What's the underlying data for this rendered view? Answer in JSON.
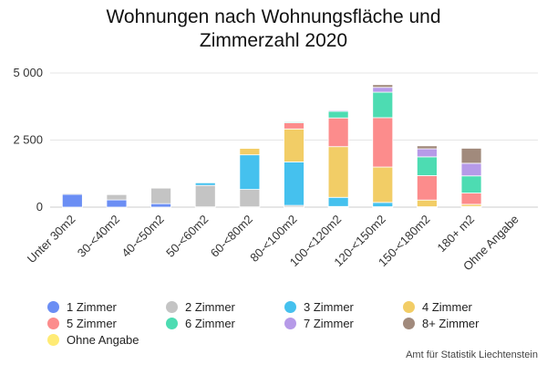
{
  "chart_data": {
    "type": "bar",
    "stacked": true,
    "title": "Wohnungen nach Wohnungsfläche und Zimmerzahl 2020",
    "title_lines": [
      "Wohnungen nach Wohnungsfläche und",
      "Zimmerzahl 2020"
    ],
    "xlabel": "",
    "ylabel": "",
    "ylim": [
      0,
      5000
    ],
    "yticks": [
      0,
      2500,
      5000
    ],
    "ytick_labels": [
      "0",
      "2 500",
      "5 000"
    ],
    "grid": true,
    "legend_position": "bottom",
    "categories": [
      "Unter 30m2",
      "30-<40m2",
      "40-<50m2",
      "50-<60m2",
      "60-<80m2",
      "80-<100m2",
      "100-<120m2",
      "120-<150m2",
      "150-<180m2",
      "180+ m2",
      "Ohne Angabe"
    ],
    "series": [
      {
        "name": "1 Zimmer",
        "color": "#6b8ef4",
        "values": [
          480,
          270,
          130,
          10,
          10,
          5,
          5,
          5,
          5,
          5,
          0
        ]
      },
      {
        "name": "2 Zimmer",
        "color": "#c4c4c4",
        "values": [
          40,
          200,
          580,
          800,
          650,
          60,
          20,
          10,
          5,
          10,
          0
        ]
      },
      {
        "name": "3 Zimmer",
        "color": "#45c1ee",
        "values": [
          5,
          10,
          20,
          100,
          1290,
          1620,
          340,
          160,
          5,
          10,
          0
        ]
      },
      {
        "name": "4 Zimmer",
        "color": "#f2cd66",
        "values": [
          0,
          5,
          10,
          10,
          240,
          1230,
          1890,
          1320,
          250,
          80,
          0
        ]
      },
      {
        "name": "5 Zimmer",
        "color": "#fc8c8c",
        "values": [
          0,
          0,
          0,
          0,
          5,
          230,
          1070,
          1840,
          910,
          420,
          0
        ]
      },
      {
        "name": "6 Zimmer",
        "color": "#4ddcb2",
        "values": [
          0,
          0,
          0,
          0,
          5,
          40,
          250,
          950,
          700,
          640,
          0
        ]
      },
      {
        "name": "7 Zimmer",
        "color": "#b69ae8",
        "values": [
          0,
          0,
          0,
          0,
          0,
          10,
          40,
          180,
          300,
          470,
          0
        ]
      },
      {
        "name": "8+ Zimmer",
        "color": "#a18a7c",
        "values": [
          0,
          0,
          0,
          0,
          0,
          10,
          20,
          100,
          110,
          560,
          0
        ]
      },
      {
        "name": "Ohne Angabe",
        "color": "#ffeb75",
        "values": [
          0,
          0,
          0,
          0,
          0,
          0,
          0,
          0,
          0,
          0,
          0
        ]
      }
    ]
  },
  "source": "Amt für Statistik Liechtenstein"
}
